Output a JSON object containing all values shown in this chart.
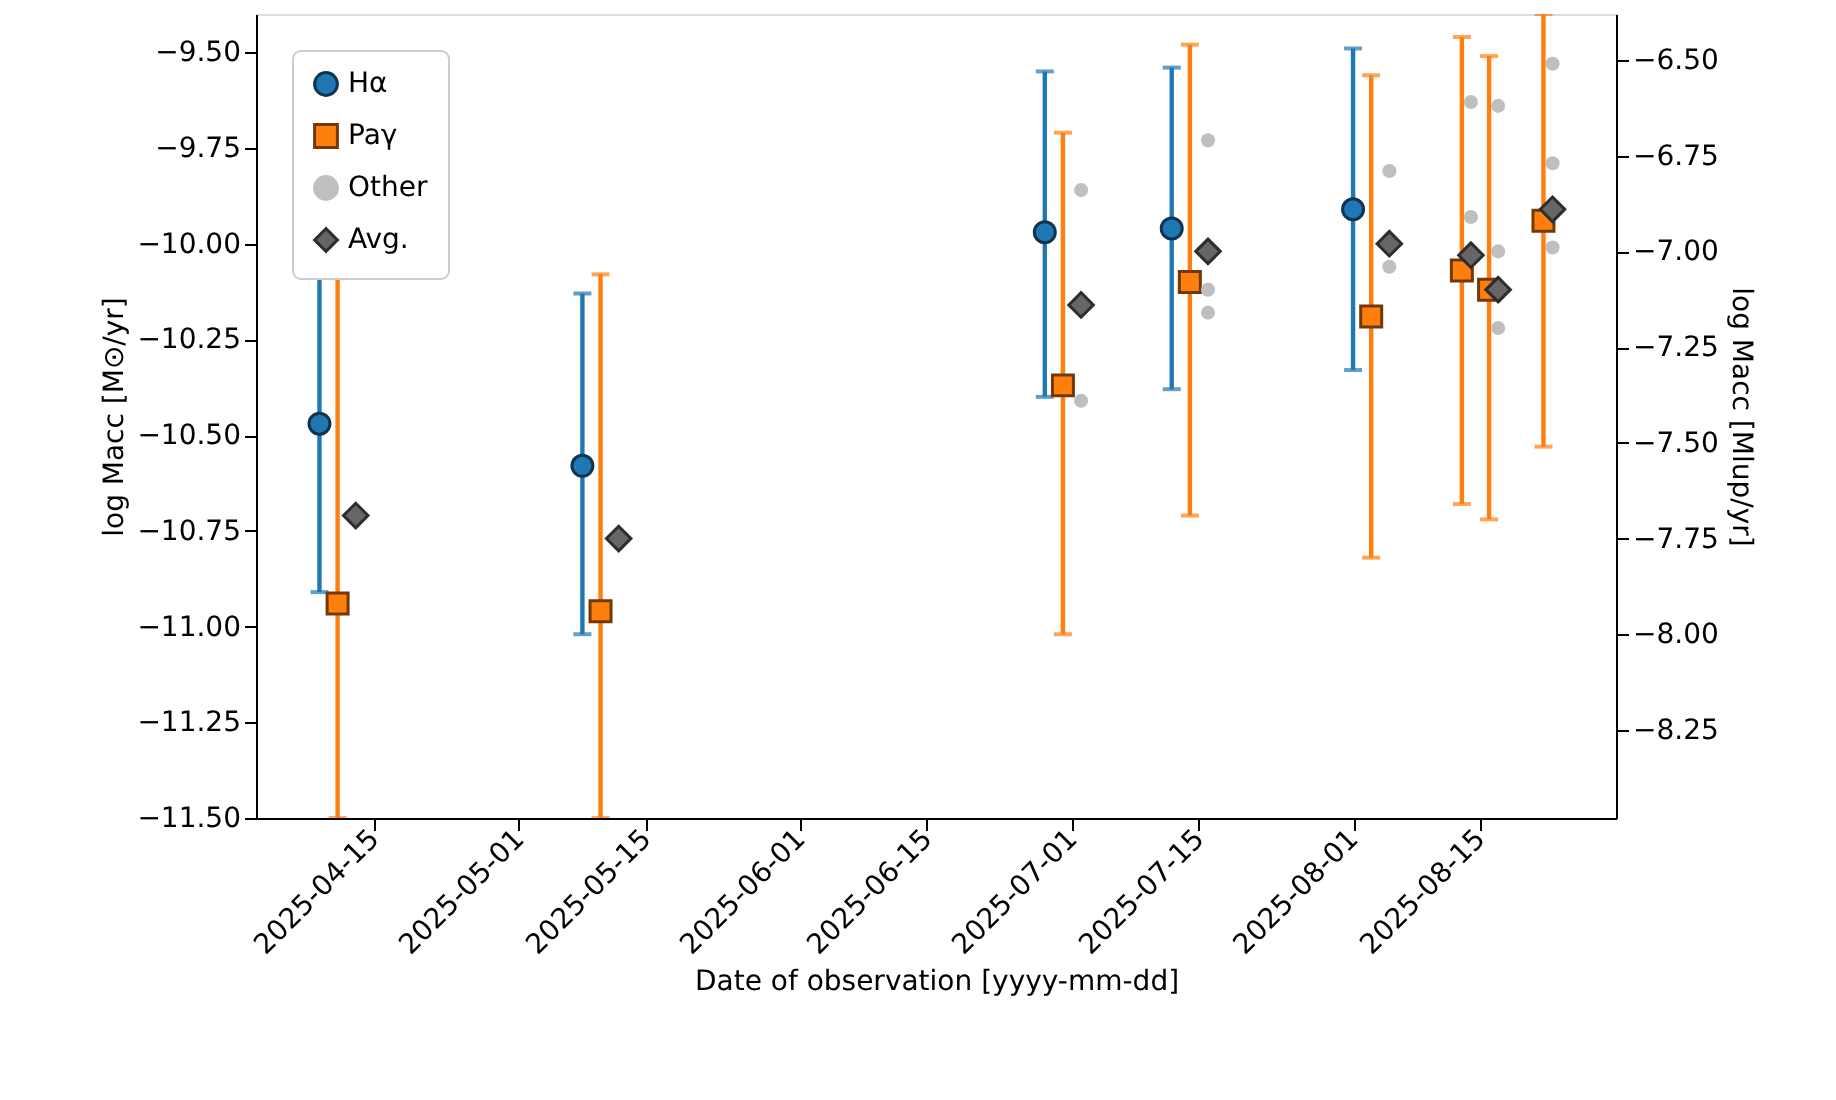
{
  "chart_data": {
    "type": "scatter",
    "xlabel": "Date of observation [yyyy-mm-dd]",
    "ylabel": "log Macc [M⊙/yr]",
    "y2label": "log Macc [Mlup/yr]",
    "xlim": [
      "2025-04-02",
      "2025-08-30"
    ],
    "xticks": [
      "2025-04-15",
      "2025-05-01",
      "2025-05-15",
      "2025-06-01",
      "2025-06-15",
      "2025-07-01",
      "2025-07-15",
      "2025-08-01",
      "2025-08-15"
    ],
    "ylim": [
      -11.5,
      -9.4
    ],
    "yticks": [
      {
        "value": -11.5,
        "label": "−11.50"
      },
      {
        "value": -11.25,
        "label": "−11.25"
      },
      {
        "value": -11.0,
        "label": "−11.00"
      },
      {
        "value": -10.75,
        "label": "−10.75"
      },
      {
        "value": -10.5,
        "label": "−10.50"
      },
      {
        "value": -10.25,
        "label": "−10.25"
      },
      {
        "value": -10.0,
        "label": "−10.00"
      },
      {
        "value": -9.75,
        "label": "−9.75"
      },
      {
        "value": -9.5,
        "label": "−9.50"
      }
    ],
    "y2lim": [
      -8.48,
      -6.38
    ],
    "y2ticks": [
      {
        "value": -8.25,
        "label": "−8.25"
      },
      {
        "value": -8.0,
        "label": "−8.00"
      },
      {
        "value": -7.75,
        "label": "−7.75"
      },
      {
        "value": -7.5,
        "label": "−7.50"
      },
      {
        "value": -7.25,
        "label": "−7.25"
      },
      {
        "value": -7.0,
        "label": "−7.00"
      },
      {
        "value": -6.75,
        "label": "−6.75"
      },
      {
        "value": -6.5,
        "label": "−6.50"
      }
    ],
    "legend": "top left",
    "grid": false,
    "series": [
      {
        "name": "Hα",
        "type": "scatter",
        "marker": "circle",
        "color": "#1f77b4",
        "x": [
          "2025-04-09",
          "2025-05-08",
          "2025-06-28",
          "2025-07-12",
          "2025-08-01"
        ],
        "values": [
          -10.47,
          -10.58,
          -9.97,
          -9.96,
          -9.91
        ],
        "errors": [
          [
            -10.91,
            -10.02
          ],
          [
            -11.02,
            -10.13
          ],
          [
            -10.4,
            -9.55
          ],
          [
            -10.38,
            -9.54
          ],
          [
            -10.33,
            -9.49
          ]
        ]
      },
      {
        "name": "Paγ",
        "type": "scatter",
        "marker": "square",
        "color": "#ff7f0e",
        "x": [
          "2025-04-11",
          "2025-05-10",
          "2025-06-30",
          "2025-07-14",
          "2025-08-03",
          "2025-08-13",
          "2025-08-16",
          "2025-08-22"
        ],
        "values": [
          -10.94,
          -10.96,
          -10.37,
          -10.1,
          -10.19,
          -10.07,
          -10.12,
          -9.94
        ],
        "errors": [
          [
            -11.5,
            -10.09
          ],
          [
            -11.5,
            -10.08
          ],
          [
            -11.02,
            -9.71
          ],
          [
            -10.71,
            -9.48
          ],
          [
            -10.82,
            -9.56
          ],
          [
            -10.68,
            -9.46
          ],
          [
            -10.72,
            -9.51
          ],
          [
            -10.53,
            -9.4
          ]
        ]
      },
      {
        "name": "Other",
        "type": "scatter",
        "marker": "circle",
        "color": "#bfbfbf",
        "x": [
          "2025-07-02",
          "2025-07-02",
          "2025-07-16",
          "2025-07-16",
          "2025-07-16",
          "2025-08-05",
          "2025-08-05",
          "2025-08-14",
          "2025-08-14",
          "2025-08-17",
          "2025-08-17",
          "2025-08-17",
          "2025-08-23",
          "2025-08-23",
          "2025-08-23"
        ],
        "values": [
          -9.86,
          -10.41,
          -9.73,
          -10.12,
          -10.18,
          -9.81,
          -10.06,
          -9.63,
          -9.93,
          -9.64,
          -10.02,
          -10.22,
          -9.53,
          -9.79,
          -10.01
        ]
      },
      {
        "name": "Avg.",
        "type": "scatter",
        "marker": "diamond",
        "color": "#666666",
        "x": [
          "2025-04-13",
          "2025-05-12",
          "2025-07-02",
          "2025-07-16",
          "2025-08-05",
          "2025-08-14",
          "2025-08-17",
          "2025-08-23"
        ],
        "values": [
          -10.71,
          -10.77,
          -10.16,
          -10.02,
          -10.0,
          -10.03,
          -10.12,
          -9.91
        ]
      }
    ]
  }
}
